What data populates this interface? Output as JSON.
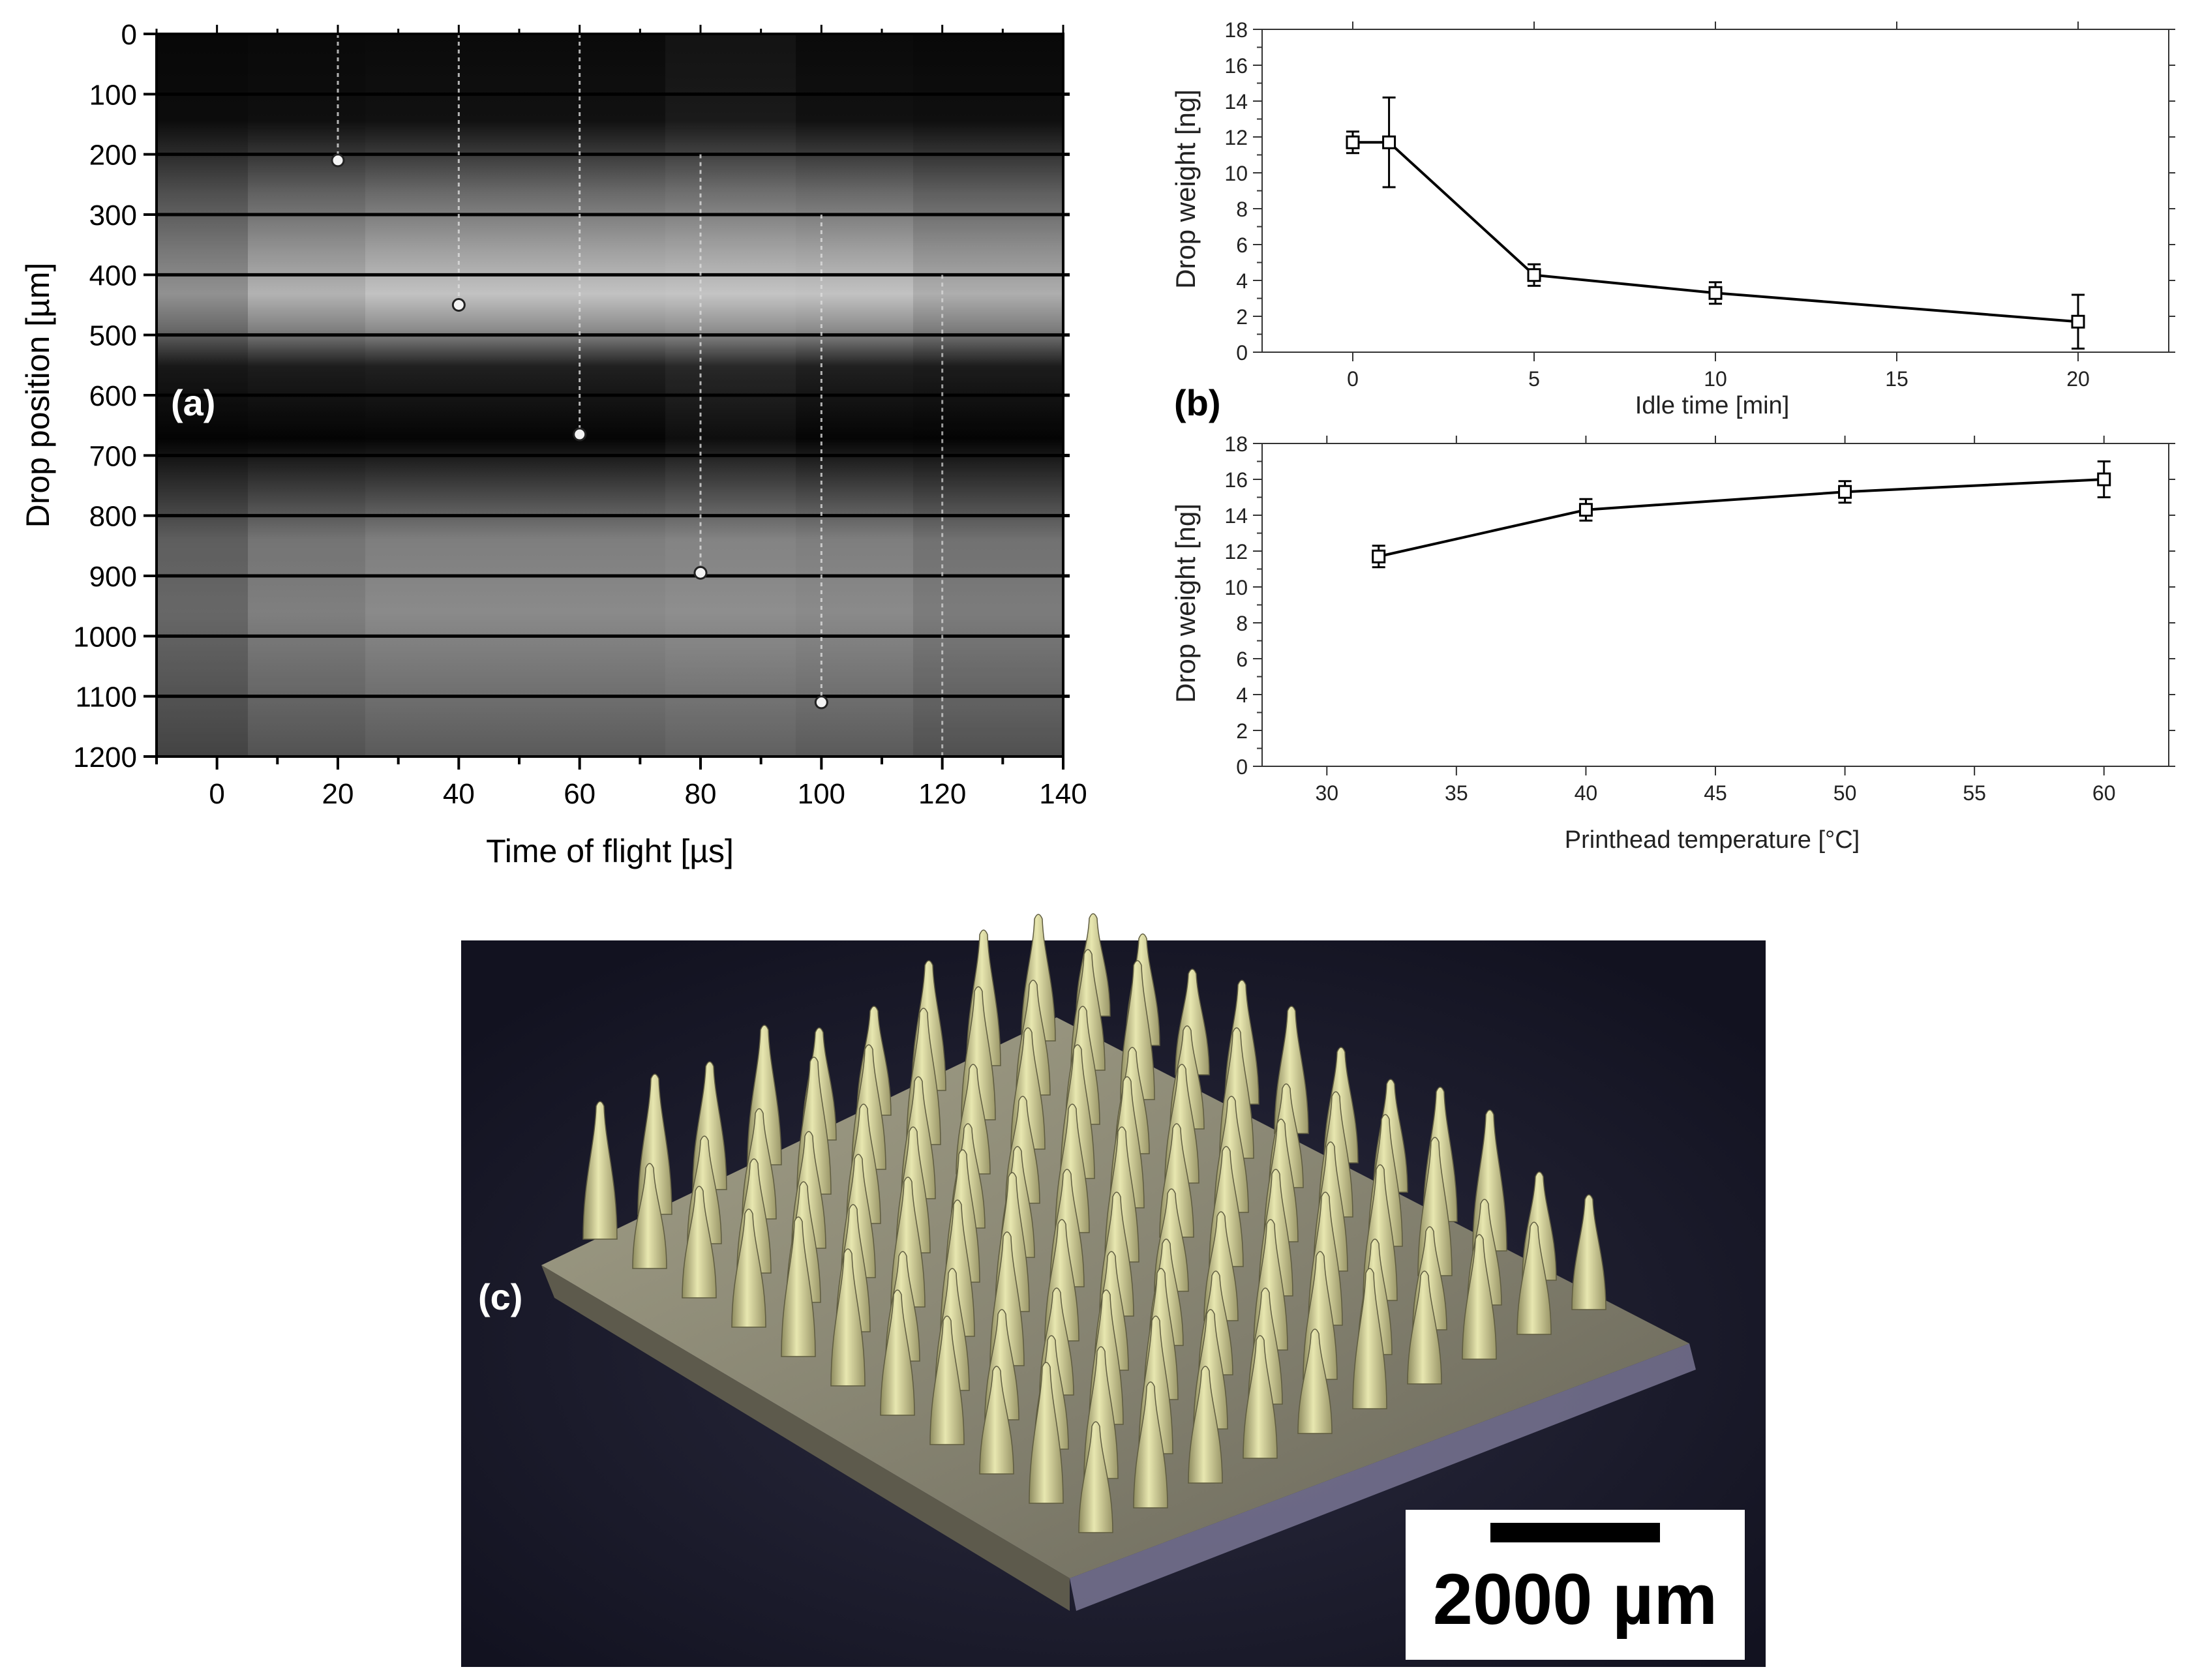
{
  "panels": {
    "a": {
      "label": "(a)"
    },
    "b": {
      "label": "(b)"
    },
    "c": {
      "label": "(c)",
      "scale_bar_label": "2000 µm"
    }
  },
  "colors": {
    "line": "#000000",
    "axis": "#333333",
    "marker_fill": "#ffffff",
    "panel_label": "#ffffff",
    "photo_background": "#1c1c30",
    "microneedle": "#d6d79a",
    "base": "#a8a48a"
  },
  "chart_data": [
    {
      "id": "a",
      "type": "scatter",
      "background": "stroboscopic drop image (grayscale)",
      "xlabel": "Time of flight [µs]",
      "ylabel": "Drop position [µm]",
      "xlim": [
        -10,
        140
      ],
      "ylim": [
        0,
        1200
      ],
      "y_inverted": true,
      "xticks": [
        "0",
        "20",
        "40",
        "60",
        "80",
        "100",
        "120",
        "140"
      ],
      "yticks": [
        "0",
        "100",
        "200",
        "300",
        "400",
        "500",
        "600",
        "700",
        "800",
        "900",
        "1000",
        "1100",
        "1200"
      ],
      "grid": true,
      "drops": [
        {
          "x": 20,
          "y": 210
        },
        {
          "x": 40,
          "y": 450
        },
        {
          "x": 60,
          "y": 665
        },
        {
          "x": 80,
          "y": 895
        },
        {
          "x": 100,
          "y": 1110
        }
      ]
    },
    {
      "id": "b-top",
      "type": "line",
      "xlabel": "Idle time [min]",
      "ylabel": "Drop weight [ng]",
      "xlim": [
        -2.5,
        22.5
      ],
      "ylim": [
        0,
        18
      ],
      "xticks": [
        "0",
        "5",
        "10",
        "15",
        "20"
      ],
      "yticks": [
        "0",
        "2",
        "4",
        "6",
        "8",
        "10",
        "12",
        "14",
        "16",
        "18"
      ],
      "grid": false,
      "series": [
        {
          "x": [
            0,
            1,
            5,
            10,
            20
          ],
          "y": [
            11.7,
            11.7,
            4.3,
            3.3,
            1.7
          ],
          "err": [
            0.6,
            2.5,
            0.6,
            0.6,
            1.5
          ]
        }
      ]
    },
    {
      "id": "b-bottom",
      "type": "line",
      "xlabel": "Printhead temperature [°C]",
      "ylabel": "Drop weight [ng]",
      "xlim": [
        27.5,
        62.5
      ],
      "ylim": [
        0,
        18
      ],
      "xticks": [
        "30",
        "35",
        "40",
        "45",
        "50",
        "55",
        "60"
      ],
      "yticks": [
        "0",
        "2",
        "4",
        "6",
        "8",
        "10",
        "12",
        "14",
        "16",
        "18"
      ],
      "grid": false,
      "series": [
        {
          "x": [
            32,
            40,
            50,
            60
          ],
          "y": [
            11.7,
            14.3,
            15.3,
            16.0
          ],
          "err": [
            0.6,
            0.6,
            0.6,
            1.0
          ]
        }
      ]
    }
  ]
}
